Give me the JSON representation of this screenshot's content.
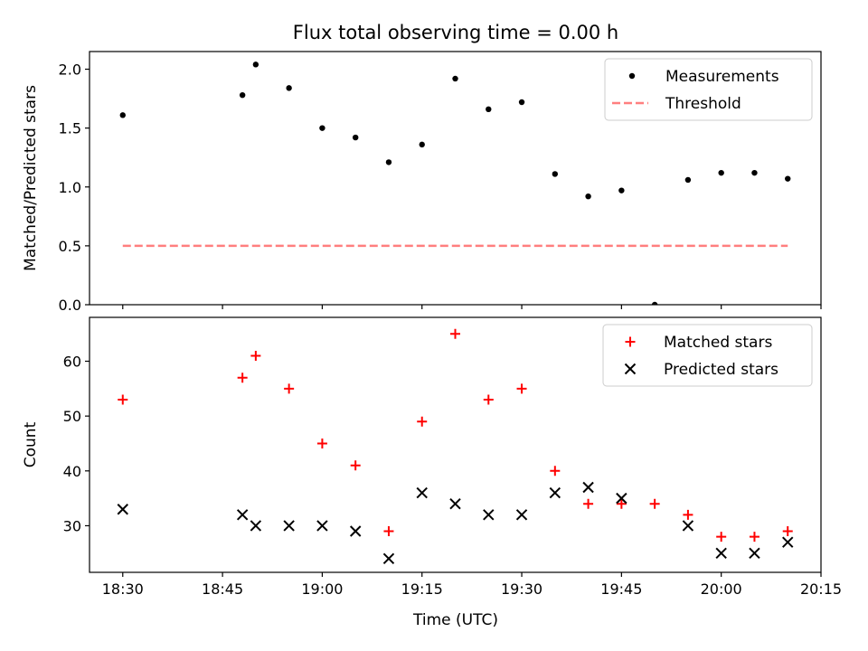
{
  "figure": {
    "title": "Flux total observing time = 0.00 h",
    "xlabel": "Time (UTC)",
    "x_ticks": [
      "18:30",
      "18:45",
      "19:00",
      "19:15",
      "19:30",
      "19:45",
      "20:00",
      "20:15"
    ]
  },
  "chart_data": [
    {
      "type": "scatter",
      "ylabel": "Matched/Predicted stars",
      "xlim": [
        "18:25",
        "20:15"
      ],
      "ylim": [
        0,
        2.15
      ],
      "y_ticks": [
        "0.0",
        "0.5",
        "1.0",
        "1.5",
        "2.0"
      ],
      "legend_position": "top-right",
      "series": [
        {
          "name": "Measurements",
          "kind": "points",
          "color": "#000000",
          "x": [
            "18:30",
            "18:48",
            "18:50",
            "18:55",
            "19:00",
            "19:05",
            "19:10",
            "19:15",
            "19:20",
            "19:25",
            "19:30",
            "19:35",
            "19:40",
            "19:45",
            "19:50",
            "19:55",
            "20:00",
            "20:05",
            "20:10"
          ],
          "y": [
            1.61,
            1.78,
            2.04,
            1.84,
            1.5,
            1.42,
            1.21,
            1.36,
            1.92,
            1.66,
            1.72,
            1.11,
            0.92,
            0.97,
            0.0,
            1.06,
            1.12,
            1.12,
            1.07
          ]
        },
        {
          "name": "Threshold",
          "kind": "dashed-line",
          "color": "#ff7f7f",
          "x": [
            "18:30",
            "20:10"
          ],
          "y": [
            0.5,
            0.5
          ]
        }
      ]
    },
    {
      "type": "scatter",
      "ylabel": "Count",
      "xlim": [
        "18:25",
        "20:15"
      ],
      "ylim": [
        21.5,
        68
      ],
      "y_ticks": [
        "30",
        "40",
        "50",
        "60"
      ],
      "legend_position": "top-right",
      "series": [
        {
          "name": "Matched stars",
          "kind": "plus",
          "color": "#ff0000",
          "x": [
            "18:30",
            "18:48",
            "18:50",
            "18:55",
            "19:00",
            "19:05",
            "19:10",
            "19:15",
            "19:20",
            "19:25",
            "19:30",
            "19:35",
            "19:40",
            "19:45",
            "19:50",
            "19:55",
            "20:00",
            "20:05",
            "20:10"
          ],
          "y": [
            53,
            57,
            61,
            55,
            45,
            41,
            29,
            49,
            65,
            53,
            55,
            40,
            34,
            34,
            34,
            32,
            28,
            28,
            29
          ]
        },
        {
          "name": "Predicted stars",
          "kind": "x",
          "color": "#000000",
          "x": [
            "18:30",
            "18:48",
            "18:50",
            "18:55",
            "19:00",
            "19:05",
            "19:10",
            "19:15",
            "19:20",
            "19:25",
            "19:30",
            "19:35",
            "19:40",
            "19:45",
            "19:55",
            "20:00",
            "20:05",
            "20:10"
          ],
          "y": [
            33,
            32,
            30,
            30,
            30,
            29,
            24,
            36,
            34,
            32,
            32,
            36,
            37,
            35,
            30,
            25,
            25,
            27
          ]
        }
      ]
    }
  ]
}
